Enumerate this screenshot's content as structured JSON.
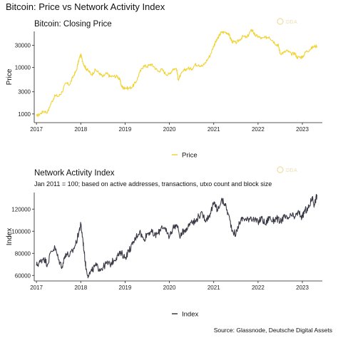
{
  "figure": {
    "title": "Bitcoin: Price vs Network Activity Index",
    "source": "Source: Glassnode, Deutsche Digital Assets",
    "watermark": "DDA"
  },
  "chart_data": [
    {
      "type": "line",
      "title": "Bitcoin: Closing Price",
      "subtitle": "",
      "xlabel": "",
      "ylabel": "Price",
      "yscale": "log",
      "ylim": [
        650,
        60000
      ],
      "xlim": [
        2016.95,
        2023.45
      ],
      "x_ticks": [
        2017,
        2018,
        2019,
        2020,
        2021,
        2022,
        2023
      ],
      "x_tick_labels": [
        "2017",
        "2018",
        "2019",
        "2020",
        "2021",
        "2022",
        "2023"
      ],
      "y_ticks": [
        1000,
        3000,
        10000,
        30000
      ],
      "y_tick_labels": [
        "1000",
        "3000",
        "10000",
        "30000"
      ],
      "grid": false,
      "legend_position": "bottom",
      "series": [
        {
          "name": "Price",
          "color": "#f2d336",
          "x": [
            2017.0,
            2017.08,
            2017.16,
            2017.25,
            2017.33,
            2017.42,
            2017.5,
            2017.58,
            2017.66,
            2017.75,
            2017.83,
            2017.9,
            2017.96,
            2018.0,
            2018.04,
            2018.08,
            2018.12,
            2018.17,
            2018.25,
            2018.33,
            2018.42,
            2018.5,
            2018.58,
            2018.66,
            2018.75,
            2018.83,
            2018.88,
            2018.92,
            2018.96,
            2019.0,
            2019.08,
            2019.17,
            2019.25,
            2019.33,
            2019.42,
            2019.5,
            2019.58,
            2019.66,
            2019.75,
            2019.83,
            2019.92,
            2020.0,
            2020.08,
            2020.16,
            2020.2,
            2020.25,
            2020.33,
            2020.42,
            2020.5,
            2020.58,
            2020.66,
            2020.75,
            2020.83,
            2020.92,
            2021.0,
            2021.04,
            2021.08,
            2021.12,
            2021.17,
            2021.25,
            2021.33,
            2021.38,
            2021.42,
            2021.5,
            2021.58,
            2021.66,
            2021.75,
            2021.83,
            2021.88,
            2021.92,
            2022.0,
            2022.08,
            2022.17,
            2022.25,
            2022.33,
            2022.42,
            2022.46,
            2022.5,
            2022.58,
            2022.66,
            2022.75,
            2022.83,
            2022.88,
            2022.96,
            2023.0,
            2023.08,
            2023.16,
            2023.25,
            2023.33
          ],
          "y": [
            900,
            1000,
            1150,
            1100,
            1700,
            2500,
            2400,
            3000,
            4600,
            4300,
            6500,
            8500,
            15000,
            19000,
            13800,
            11000,
            9500,
            8500,
            7000,
            9000,
            7500,
            6300,
            7500,
            6400,
            6500,
            6400,
            5500,
            4000,
            3600,
            3700,
            3550,
            3900,
            5000,
            7800,
            11000,
            10500,
            11800,
            10300,
            8200,
            9200,
            7200,
            7200,
            9300,
            9500,
            5500,
            6800,
            8700,
            9700,
            9200,
            11600,
            11500,
            10700,
            13500,
            18500,
            29000,
            35000,
            40000,
            48000,
            57000,
            58000,
            55000,
            42000,
            36000,
            34000,
            39000,
            47000,
            44000,
            61000,
            64000,
            50000,
            47000,
            42000,
            44000,
            46000,
            38000,
            31000,
            30000,
            20000,
            21000,
            23000,
            19400,
            20500,
            16500,
            16800,
            16600,
            22000,
            24000,
            28000,
            29200
          ]
        }
      ]
    },
    {
      "type": "line",
      "title": "Network Activity Index",
      "subtitle": "Jan 2011 = 100; based on active addresses, transactions, utxo count and block size",
      "xlabel": "",
      "ylabel": "Index",
      "ylim": [
        55000,
        135000
      ],
      "xlim": [
        2016.95,
        2023.45
      ],
      "x_ticks": [
        2017,
        2018,
        2019,
        2020,
        2021,
        2022,
        2023
      ],
      "x_tick_labels": [
        "2017",
        "2018",
        "2019",
        "2020",
        "2021",
        "2022",
        "2023"
      ],
      "y_ticks": [
        60000,
        80000,
        100000,
        120000
      ],
      "y_tick_labels": [
        "60000",
        "80000",
        "100000",
        "120000"
      ],
      "grid": false,
      "legend_position": "bottom",
      "series": [
        {
          "name": "Index",
          "color": "#3a3a46",
          "x": [
            2017.0,
            2017.08,
            2017.16,
            2017.25,
            2017.33,
            2017.42,
            2017.5,
            2017.58,
            2017.66,
            2017.75,
            2017.83,
            2017.9,
            2017.96,
            2018.0,
            2018.04,
            2018.08,
            2018.12,
            2018.17,
            2018.25,
            2018.33,
            2018.42,
            2018.5,
            2018.58,
            2018.66,
            2018.75,
            2018.83,
            2018.92,
            2019.0,
            2019.08,
            2019.17,
            2019.25,
            2019.33,
            2019.42,
            2019.5,
            2019.58,
            2019.66,
            2019.75,
            2019.83,
            2019.92,
            2020.0,
            2020.08,
            2020.16,
            2020.25,
            2020.33,
            2020.42,
            2020.5,
            2020.58,
            2020.66,
            2020.75,
            2020.83,
            2020.92,
            2021.0,
            2021.04,
            2021.08,
            2021.17,
            2021.25,
            2021.33,
            2021.42,
            2021.5,
            2021.58,
            2021.66,
            2021.75,
            2021.83,
            2021.92,
            2022.0,
            2022.08,
            2022.17,
            2022.25,
            2022.33,
            2022.42,
            2022.5,
            2022.58,
            2022.66,
            2022.75,
            2022.83,
            2022.92,
            2023.0,
            2023.06,
            2023.1,
            2023.16,
            2023.22,
            2023.27,
            2023.33
          ],
          "y": [
            69000,
            72000,
            76000,
            70000,
            82000,
            85000,
            74000,
            68000,
            80000,
            78000,
            83000,
            90000,
            100000,
            106000,
            95000,
            80000,
            66000,
            60000,
            64000,
            69000,
            66000,
            67000,
            71000,
            70000,
            74000,
            78000,
            80000,
            76000,
            82000,
            88000,
            95000,
            100000,
            92000,
            98000,
            100000,
            96000,
            98000,
            105000,
            100000,
            95000,
            103000,
            106000,
            95000,
            101000,
            104000,
            110000,
            108000,
            114000,
            115000,
            110000,
            116000,
            125000,
            124000,
            118000,
            128000,
            125000,
            115000,
            101000,
            97000,
            108000,
            112000,
            110000,
            113000,
            110000,
            108000,
            112000,
            106000,
            113000,
            109000,
            112000,
            108000,
            113000,
            111000,
            114000,
            113000,
            117000,
            112000,
            120000,
            118000,
            123000,
            131000,
            124000,
            133000
          ]
        }
      ]
    }
  ]
}
